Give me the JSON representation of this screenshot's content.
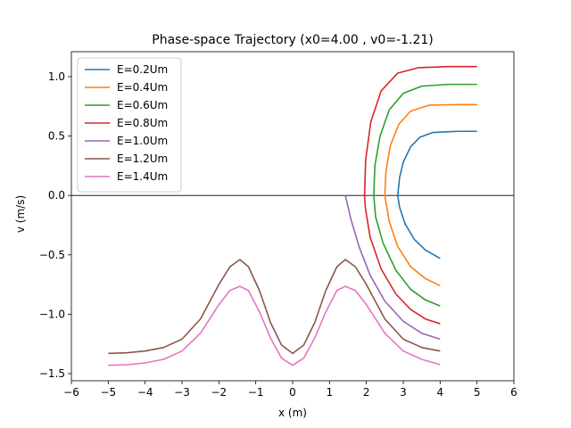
{
  "chart_data": {
    "type": "line",
    "title": "Phase-space Trajectory (x0=4.00 , v0=-1.21)",
    "xlabel": "x (m)",
    "ylabel": "v (m/s)",
    "xlim": [
      -6,
      6
    ],
    "ylim": [
      -1.56,
      1.21
    ],
    "xticks": [
      -6,
      -5,
      -4,
      -3,
      -2,
      -1,
      0,
      1,
      2,
      3,
      4,
      5,
      6
    ],
    "yticks": [
      -1.5,
      -1.0,
      -0.5,
      0.0,
      0.5,
      1.0
    ],
    "xtick_labels": [
      "−6",
      "−5",
      "−4",
      "−3",
      "−2",
      "−1",
      "0",
      "1",
      "2",
      "3",
      "4",
      "5",
      "6"
    ],
    "ytick_labels": [
      "−1.5",
      "−1.0",
      "−0.5",
      "0.0",
      "0.5",
      "1.0"
    ],
    "hline": 0,
    "grid": false,
    "legend_position": "top-left",
    "series": [
      {
        "name": "E=0.2Um",
        "color": "#1f77b4",
        "points": [
          [
            4.0,
            -0.53
          ],
          [
            3.6,
            -0.46
          ],
          [
            3.3,
            -0.37
          ],
          [
            3.05,
            -0.24
          ],
          [
            2.9,
            -0.1
          ],
          [
            2.85,
            0.0
          ],
          [
            2.9,
            0.15
          ],
          [
            3.0,
            0.28
          ],
          [
            3.2,
            0.41
          ],
          [
            3.45,
            0.49
          ],
          [
            3.8,
            0.53
          ],
          [
            4.5,
            0.54
          ],
          [
            5.0,
            0.54
          ]
        ]
      },
      {
        "name": "E=0.4Um",
        "color": "#ff7f0e",
        "points": [
          [
            4.0,
            -0.76
          ],
          [
            3.6,
            -0.7
          ],
          [
            3.2,
            -0.6
          ],
          [
            2.85,
            -0.43
          ],
          [
            2.62,
            -0.22
          ],
          [
            2.5,
            0.0
          ],
          [
            2.53,
            0.2
          ],
          [
            2.65,
            0.42
          ],
          [
            2.88,
            0.6
          ],
          [
            3.2,
            0.71
          ],
          [
            3.7,
            0.76
          ],
          [
            4.5,
            0.765
          ],
          [
            5.0,
            0.765
          ]
        ]
      },
      {
        "name": "E=0.6Um",
        "color": "#2ca02c",
        "points": [
          [
            4.0,
            -0.93
          ],
          [
            3.6,
            -0.88
          ],
          [
            3.2,
            -0.79
          ],
          [
            2.8,
            -0.63
          ],
          [
            2.45,
            -0.4
          ],
          [
            2.25,
            -0.18
          ],
          [
            2.2,
            0.0
          ],
          [
            2.23,
            0.25
          ],
          [
            2.37,
            0.5
          ],
          [
            2.62,
            0.72
          ],
          [
            3.0,
            0.86
          ],
          [
            3.5,
            0.92
          ],
          [
            4.2,
            0.935
          ],
          [
            5.0,
            0.935
          ]
        ]
      },
      {
        "name": "E=0.8Um",
        "color": "#d62728",
        "points": [
          [
            4.0,
            -1.08
          ],
          [
            3.6,
            -1.04
          ],
          [
            3.2,
            -0.96
          ],
          [
            2.8,
            -0.83
          ],
          [
            2.4,
            -0.62
          ],
          [
            2.1,
            -0.35
          ],
          [
            1.97,
            -0.1
          ],
          [
            1.95,
            0.0
          ],
          [
            1.98,
            0.3
          ],
          [
            2.12,
            0.62
          ],
          [
            2.4,
            0.88
          ],
          [
            2.85,
            1.03
          ],
          [
            3.4,
            1.075
          ],
          [
            4.2,
            1.085
          ],
          [
            5.0,
            1.085
          ]
        ]
      },
      {
        "name": "E=1.0Um",
        "color": "#9467bd",
        "points": [
          [
            4.0,
            -1.21
          ],
          [
            3.5,
            -1.16
          ],
          [
            3.0,
            -1.06
          ],
          [
            2.5,
            -0.89
          ],
          [
            2.1,
            -0.67
          ],
          [
            1.8,
            -0.43
          ],
          [
            1.58,
            -0.2
          ],
          [
            1.43,
            0.0
          ]
        ]
      },
      {
        "name": "E=1.2Um",
        "color": "#8c564b",
        "points": [
          [
            -5.0,
            -1.33
          ],
          [
            -4.5,
            -1.325
          ],
          [
            -4.0,
            -1.31
          ],
          [
            -3.5,
            -1.28
          ],
          [
            -3.0,
            -1.21
          ],
          [
            -2.5,
            -1.04
          ],
          [
            -2.0,
            -0.75
          ],
          [
            -1.7,
            -0.6
          ],
          [
            -1.43,
            -0.54
          ],
          [
            -1.2,
            -0.6
          ],
          [
            -0.9,
            -0.8
          ],
          [
            -0.6,
            -1.07
          ],
          [
            -0.3,
            -1.26
          ],
          [
            0.0,
            -1.33
          ],
          [
            0.3,
            -1.26
          ],
          [
            0.6,
            -1.07
          ],
          [
            0.9,
            -0.8
          ],
          [
            1.2,
            -0.6
          ],
          [
            1.43,
            -0.54
          ],
          [
            1.7,
            -0.6
          ],
          [
            2.0,
            -0.75
          ],
          [
            2.5,
            -1.04
          ],
          [
            3.0,
            -1.21
          ],
          [
            3.5,
            -1.28
          ],
          [
            4.0,
            -1.31
          ]
        ]
      },
      {
        "name": "E=1.4Um",
        "color": "#e377c2",
        "points": [
          [
            -5.0,
            -1.43
          ],
          [
            -4.5,
            -1.425
          ],
          [
            -4.0,
            -1.41
          ],
          [
            -3.5,
            -1.38
          ],
          [
            -3.0,
            -1.31
          ],
          [
            -2.5,
            -1.16
          ],
          [
            -2.0,
            -0.92
          ],
          [
            -1.7,
            -0.8
          ],
          [
            -1.43,
            -0.765
          ],
          [
            -1.2,
            -0.8
          ],
          [
            -0.9,
            -0.98
          ],
          [
            -0.6,
            -1.2
          ],
          [
            -0.3,
            -1.37
          ],
          [
            0.0,
            -1.43
          ],
          [
            0.3,
            -1.37
          ],
          [
            0.6,
            -1.2
          ],
          [
            0.9,
            -0.98
          ],
          [
            1.2,
            -0.8
          ],
          [
            1.43,
            -0.765
          ],
          [
            1.7,
            -0.8
          ],
          [
            2.0,
            -0.92
          ],
          [
            2.5,
            -1.16
          ],
          [
            3.0,
            -1.31
          ],
          [
            3.5,
            -1.38
          ],
          [
            4.0,
            -1.425
          ]
        ]
      }
    ]
  }
}
